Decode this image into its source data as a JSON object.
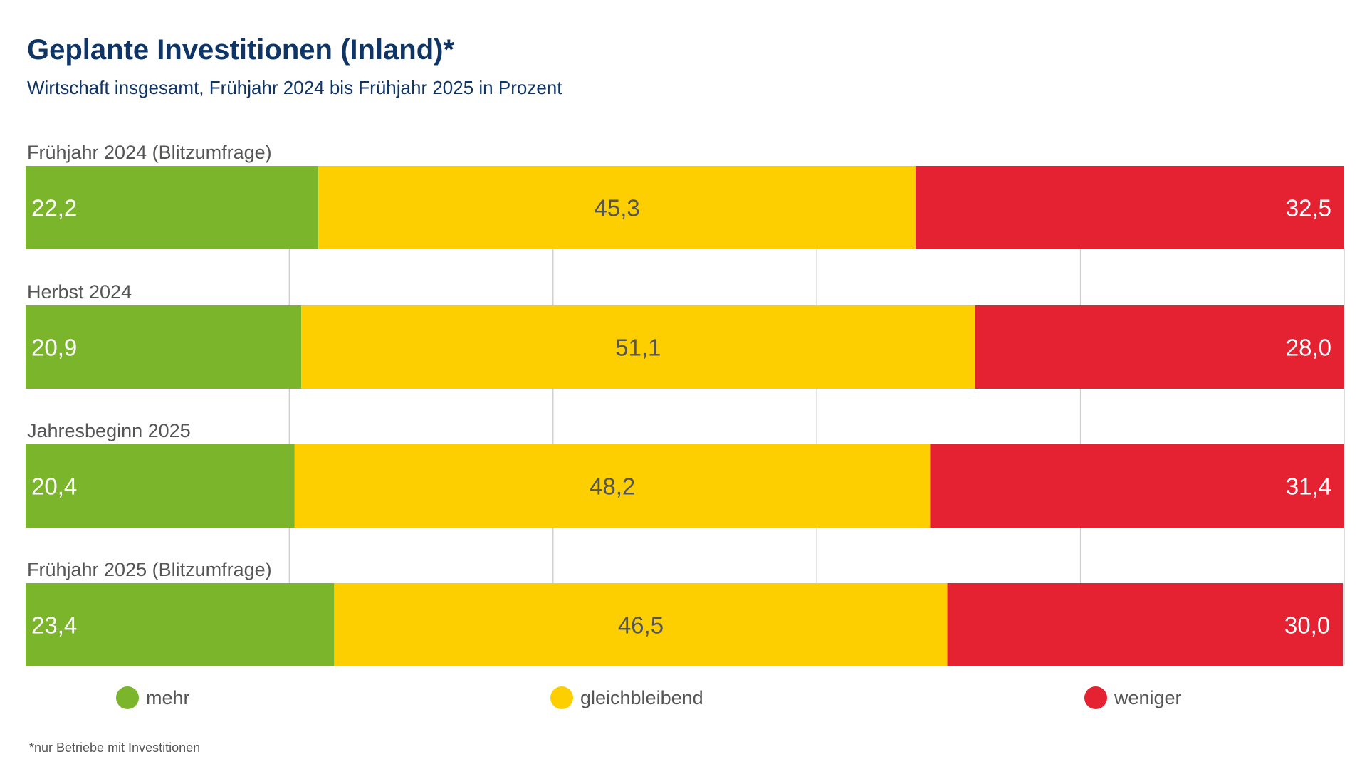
{
  "title": "Geplante Investitionen (Inland)*",
  "subtitle": "Wirtschaft insgesamt, Frühjahr 2024 bis Frühjahr 2025 in Prozent",
  "footnote": "*nur Betriebe mit Investitionen",
  "colors": {
    "mehr": "#7ab52c",
    "gleichbleibend": "#fdcf00",
    "weniger": "#e52231",
    "grid": "#d0d0d0",
    "label_dark": "#555555",
    "label_light": "#ffffff",
    "title": "#0f3466"
  },
  "legend": [
    {
      "label": "mehr",
      "color": "#7ab52c"
    },
    {
      "label": "gleichbleibend",
      "color": "#fdcf00"
    },
    {
      "label": "weniger",
      "color": "#e52231"
    }
  ],
  "chart_data": {
    "type": "bar",
    "orientation": "horizontal",
    "stacked": true,
    "categories": [
      "Frühjahr 2024 (Blitzumfrage)",
      "Herbst 2024",
      "Jahresbeginn 2025",
      "Frühjahr 2025 (Blitzumfrage)"
    ],
    "series": [
      {
        "name": "mehr",
        "values": [
          22.2,
          20.9,
          20.4,
          23.4
        ],
        "labels": [
          "22,2",
          "20,9",
          "20,4",
          "23,4"
        ],
        "color": "#7ab52c"
      },
      {
        "name": "gleichbleibend",
        "values": [
          45.3,
          51.1,
          48.2,
          46.5
        ],
        "labels": [
          "45,3",
          "51,1",
          "48,2",
          "46,5"
        ],
        "color": "#fdcf00"
      },
      {
        "name": "weniger",
        "values": [
          32.5,
          28.0,
          31.4,
          30.0
        ],
        "labels": [
          "32,5",
          "28,0",
          "31,4",
          "30,0"
        ],
        "color": "#e52231"
      }
    ],
    "xlim": [
      0,
      100
    ],
    "grid": true,
    "legend_position": "bottom"
  }
}
